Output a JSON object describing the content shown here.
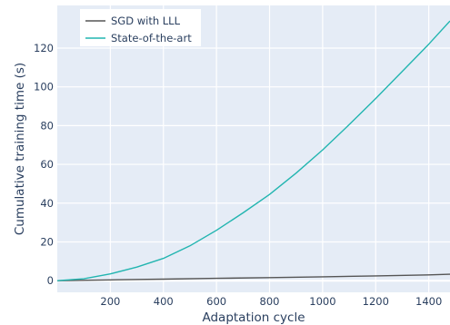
{
  "chart_data": {
    "type": "line",
    "title": "",
    "xlabel": "Adaptation cycle",
    "ylabel": "Cumulative training time (s)",
    "xlim": [
      0,
      1480
    ],
    "ylim": [
      -6,
      142
    ],
    "x_ticks": [
      200,
      400,
      600,
      800,
      1000,
      1200,
      1400
    ],
    "y_ticks": [
      0,
      20,
      40,
      60,
      80,
      100,
      120
    ],
    "grid": true,
    "plot_background": "#e5ecf6",
    "legend_position": "top-left",
    "series": [
      {
        "name": "SGD with LLL",
        "color": "#555555",
        "x": [
          0,
          200,
          400,
          600,
          800,
          1000,
          1200,
          1400,
          1480
        ],
        "y": [
          0,
          0.4,
          0.8,
          1.2,
          1.6,
          2.0,
          2.5,
          3.0,
          3.3
        ]
      },
      {
        "name": "State-of-the-art",
        "color": "#22b5b0",
        "x": [
          0,
          100,
          200,
          300,
          400,
          500,
          600,
          700,
          800,
          900,
          1000,
          1100,
          1200,
          1300,
          1400,
          1480
        ],
        "y": [
          0,
          1,
          3.5,
          7,
          11.5,
          18,
          26,
          35,
          44.5,
          55.5,
          67.5,
          80.5,
          94,
          108,
          122,
          134
        ]
      }
    ]
  }
}
